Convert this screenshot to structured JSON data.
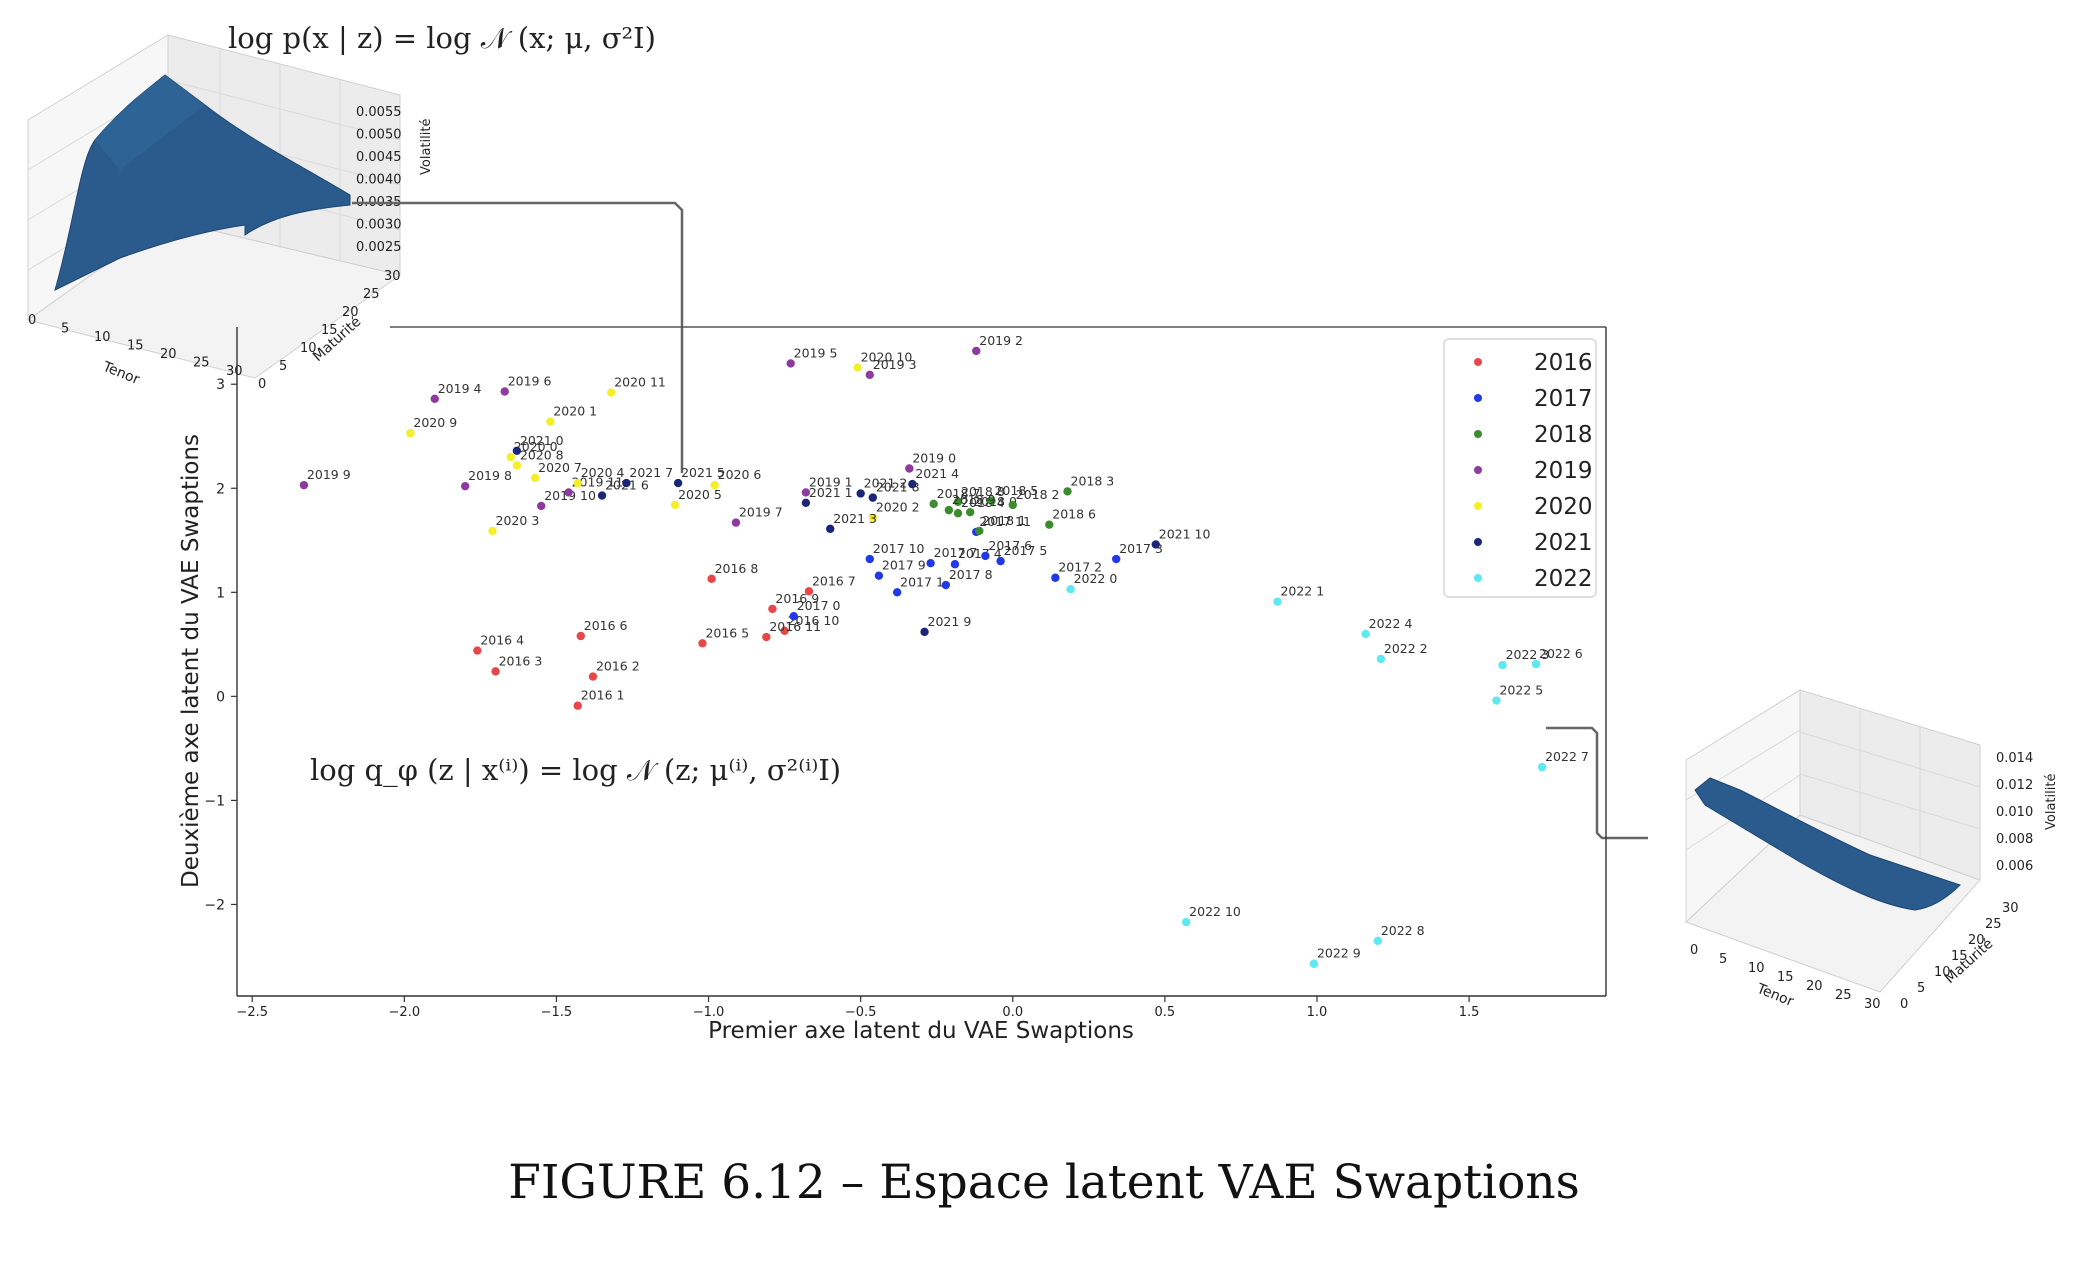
{
  "figure": {
    "caption": "FIGURE 6.12 – Espace latent VAE Swaptions",
    "decoder_formula": "log p(x | z) = log 𝒩 (x; μ, σ²I)",
    "encoder_formula": "log q_φ (z | x⁽ⁱ⁾) = log 𝒩 (z; μ⁽ⁱ⁾, σ²⁽ⁱ⁾I)"
  },
  "surface_top": {
    "zlabel": "Volatilité",
    "xlabel": "Tenor",
    "ylabel": "Maturité",
    "zticks": [
      "0.0055",
      "0.0050",
      "0.0045",
      "0.0040",
      "0.0035",
      "0.0030",
      "0.0025"
    ],
    "xticks": [
      "0",
      "5",
      "10",
      "15",
      "20",
      "25",
      "30"
    ],
    "yticks": [
      "0",
      "5",
      "10",
      "15",
      "20",
      "25",
      "30"
    ]
  },
  "surface_bottom": {
    "zlabel": "Volatilité",
    "xlabel": "Tenor",
    "ylabel": "Maturité",
    "zticks": [
      "0.014",
      "0.012",
      "0.010",
      "0.008",
      "0.006"
    ],
    "xticks": [
      "0",
      "5",
      "10",
      "15",
      "20",
      "25",
      "30"
    ],
    "yticks": [
      "0",
      "5",
      "10",
      "15",
      "20",
      "25",
      "30"
    ]
  },
  "chart_data": {
    "type": "scatter",
    "xlabel": "Premier axe latent du VAE Swaptions",
    "ylabel": "Deuxième axe latent du VAE Swaptions",
    "xlim": [
      -2.55,
      1.95
    ],
    "ylim": [
      -2.88,
      3.55
    ],
    "xticks": [
      -2.5,
      -2.0,
      -1.5,
      -1.0,
      -0.5,
      0.0,
      0.5,
      1.0,
      1.5
    ],
    "xtick_labels": [
      "−2.5",
      "−2.0",
      "−1.5",
      "−1.0",
      "−0.5",
      "0.0",
      "0.5",
      "1.0",
      "1.5"
    ],
    "yticks": [
      -2,
      -1,
      0,
      1,
      2,
      3
    ],
    "ytick_labels": [
      "−2",
      "−1",
      "0",
      "1",
      "2",
      "3"
    ],
    "grid": false,
    "legend_position": "top-right",
    "series": [
      {
        "name": "2016",
        "color": "#e8474a",
        "points": [
          {
            "x": -1.43,
            "y": -0.09,
            "label": "2016 1"
          },
          {
            "x": -1.38,
            "y": 0.19,
            "label": "2016 2"
          },
          {
            "x": -1.7,
            "y": 0.24,
            "label": "2016 3"
          },
          {
            "x": -1.76,
            "y": 0.44,
            "label": "2016 4"
          },
          {
            "x": -1.02,
            "y": 0.51,
            "label": "2016 5"
          },
          {
            "x": -1.42,
            "y": 0.58,
            "label": "2016 6"
          },
          {
            "x": -0.67,
            "y": 1.01,
            "label": "2016 7"
          },
          {
            "x": -0.99,
            "y": 1.13,
            "label": "2016 8"
          },
          {
            "x": -0.79,
            "y": 0.84,
            "label": "2016 9"
          },
          {
            "x": -0.75,
            "y": 0.63,
            "label": "2016 10"
          },
          {
            "x": -0.81,
            "y": 0.57,
            "label": "2016 11"
          }
        ]
      },
      {
        "name": "2017",
        "color": "#2239e8",
        "points": [
          {
            "x": -0.72,
            "y": 0.77,
            "label": "2017 0"
          },
          {
            "x": -0.38,
            "y": 1.0,
            "label": "2017 1"
          },
          {
            "x": 0.14,
            "y": 1.14,
            "label": "2017 2"
          },
          {
            "x": 0.34,
            "y": 1.32,
            "label": "2017 3"
          },
          {
            "x": -0.19,
            "y": 1.27,
            "label": "2017 4"
          },
          {
            "x": -0.04,
            "y": 1.3,
            "label": "2017 5"
          },
          {
            "x": -0.09,
            "y": 1.35,
            "label": "2017 6"
          },
          {
            "x": -0.27,
            "y": 1.28,
            "label": "2017 7"
          },
          {
            "x": -0.22,
            "y": 1.07,
            "label": "2017 8"
          },
          {
            "x": -0.44,
            "y": 1.16,
            "label": "2017 9"
          },
          {
            "x": -0.47,
            "y": 1.32,
            "label": "2017 10"
          },
          {
            "x": -0.12,
            "y": 1.58,
            "label": "2017 11"
          }
        ]
      },
      {
        "name": "2018",
        "color": "#3c8c2f",
        "points": [
          {
            "x": -0.14,
            "y": 1.77,
            "label": "2018 0"
          },
          {
            "x": -0.11,
            "y": 1.59,
            "label": "2018 1"
          },
          {
            "x": 0.0,
            "y": 1.84,
            "label": "2018 2"
          },
          {
            "x": 0.18,
            "y": 1.97,
            "label": "2018 3"
          },
          {
            "x": -0.18,
            "y": 1.76,
            "label": "2018 4"
          },
          {
            "x": -0.07,
            "y": 1.88,
            "label": "2018 5"
          },
          {
            "x": 0.12,
            "y": 1.65,
            "label": "2018 6"
          },
          {
            "x": -0.26,
            "y": 1.85,
            "label": "2018 7"
          },
          {
            "x": -0.18,
            "y": 1.87,
            "label": "2018 8"
          },
          {
            "x": -0.21,
            "y": 1.79,
            "label": "2018 9"
          }
        ]
      },
      {
        "name": "2019",
        "color": "#8e3a9e",
        "points": [
          {
            "x": -0.34,
            "y": 2.19,
            "label": "2019 0"
          },
          {
            "x": -0.68,
            "y": 1.96,
            "label": "2019 1"
          },
          {
            "x": -0.12,
            "y": 3.32,
            "label": "2019 2"
          },
          {
            "x": -0.47,
            "y": 3.09,
            "label": "2019 3"
          },
          {
            "x": -1.9,
            "y": 2.86,
            "label": "2019 4"
          },
          {
            "x": -0.73,
            "y": 3.2,
            "label": "2019 5"
          },
          {
            "x": -1.67,
            "y": 2.93,
            "label": "2019 6"
          },
          {
            "x": -0.91,
            "y": 1.67,
            "label": "2019 7"
          },
          {
            "x": -1.8,
            "y": 2.02,
            "label": "2019 8"
          },
          {
            "x": -2.33,
            "y": 2.03,
            "label": "2019 9"
          },
          {
            "x": -1.55,
            "y": 1.83,
            "label": "2019 10"
          },
          {
            "x": -1.46,
            "y": 1.96,
            "label": "2019 11"
          }
        ]
      },
      {
        "name": "2020",
        "color": "#f5ef2a",
        "points": [
          {
            "x": -1.65,
            "y": 2.3,
            "label": "2020 0"
          },
          {
            "x": -1.52,
            "y": 2.64,
            "label": "2020 1"
          },
          {
            "x": -0.46,
            "y": 1.72,
            "label": "2020 2"
          },
          {
            "x": -1.71,
            "y": 1.59,
            "label": "2020 3"
          },
          {
            "x": -1.43,
            "y": 2.05,
            "label": "2020 4"
          },
          {
            "x": -1.11,
            "y": 1.84,
            "label": "2020 5"
          },
          {
            "x": -0.98,
            "y": 2.03,
            "label": "2020 6"
          },
          {
            "x": -1.57,
            "y": 2.1,
            "label": "2020 7"
          },
          {
            "x": -1.63,
            "y": 2.22,
            "label": "2020 8"
          },
          {
            "x": -1.98,
            "y": 2.53,
            "label": "2020 9"
          },
          {
            "x": -0.51,
            "y": 3.16,
            "label": "2020 10"
          },
          {
            "x": -1.32,
            "y": 2.92,
            "label": "2020 11"
          }
        ]
      },
      {
        "name": "2021",
        "color": "#1b2678",
        "points": [
          {
            "x": -1.63,
            "y": 2.36,
            "label": "2021 0"
          },
          {
            "x": -0.68,
            "y": 1.86,
            "label": "2021 1"
          },
          {
            "x": -0.5,
            "y": 1.95,
            "label": "2021 2"
          },
          {
            "x": -0.6,
            "y": 1.61,
            "label": "2021 3"
          },
          {
            "x": -0.33,
            "y": 2.04,
            "label": "2021 4"
          },
          {
            "x": -1.1,
            "y": 2.05,
            "label": "2021 5"
          },
          {
            "x": -1.35,
            "y": 1.93,
            "label": "2021 6"
          },
          {
            "x": -1.27,
            "y": 2.05,
            "label": "2021 7"
          },
          {
            "x": -0.46,
            "y": 1.91,
            "label": "2021 8"
          },
          {
            "x": -0.29,
            "y": 0.62,
            "label": "2021 9"
          },
          {
            "x": 0.47,
            "y": 1.46,
            "label": "2021 10"
          }
        ]
      },
      {
        "name": "2022",
        "color": "#5ee8ef",
        "points": [
          {
            "x": 0.19,
            "y": 1.03,
            "label": "2022 0"
          },
          {
            "x": 0.87,
            "y": 0.91,
            "label": "2022 1"
          },
          {
            "x": 1.21,
            "y": 0.36,
            "label": "2022 2"
          },
          {
            "x": 1.61,
            "y": 0.3,
            "label": "2022 3"
          },
          {
            "x": 1.16,
            "y": 0.6,
            "label": "2022 4"
          },
          {
            "x": 1.59,
            "y": -0.04,
            "label": "2022 5"
          },
          {
            "x": 1.72,
            "y": 0.31,
            "label": "2022 6"
          },
          {
            "x": 1.74,
            "y": -0.68,
            "label": "2022 7"
          },
          {
            "x": 1.2,
            "y": -2.35,
            "label": "2022 8"
          },
          {
            "x": 0.99,
            "y": -2.57,
            "label": "2022 9"
          },
          {
            "x": 0.57,
            "y": -2.17,
            "label": "2022 10"
          }
        ]
      }
    ]
  }
}
